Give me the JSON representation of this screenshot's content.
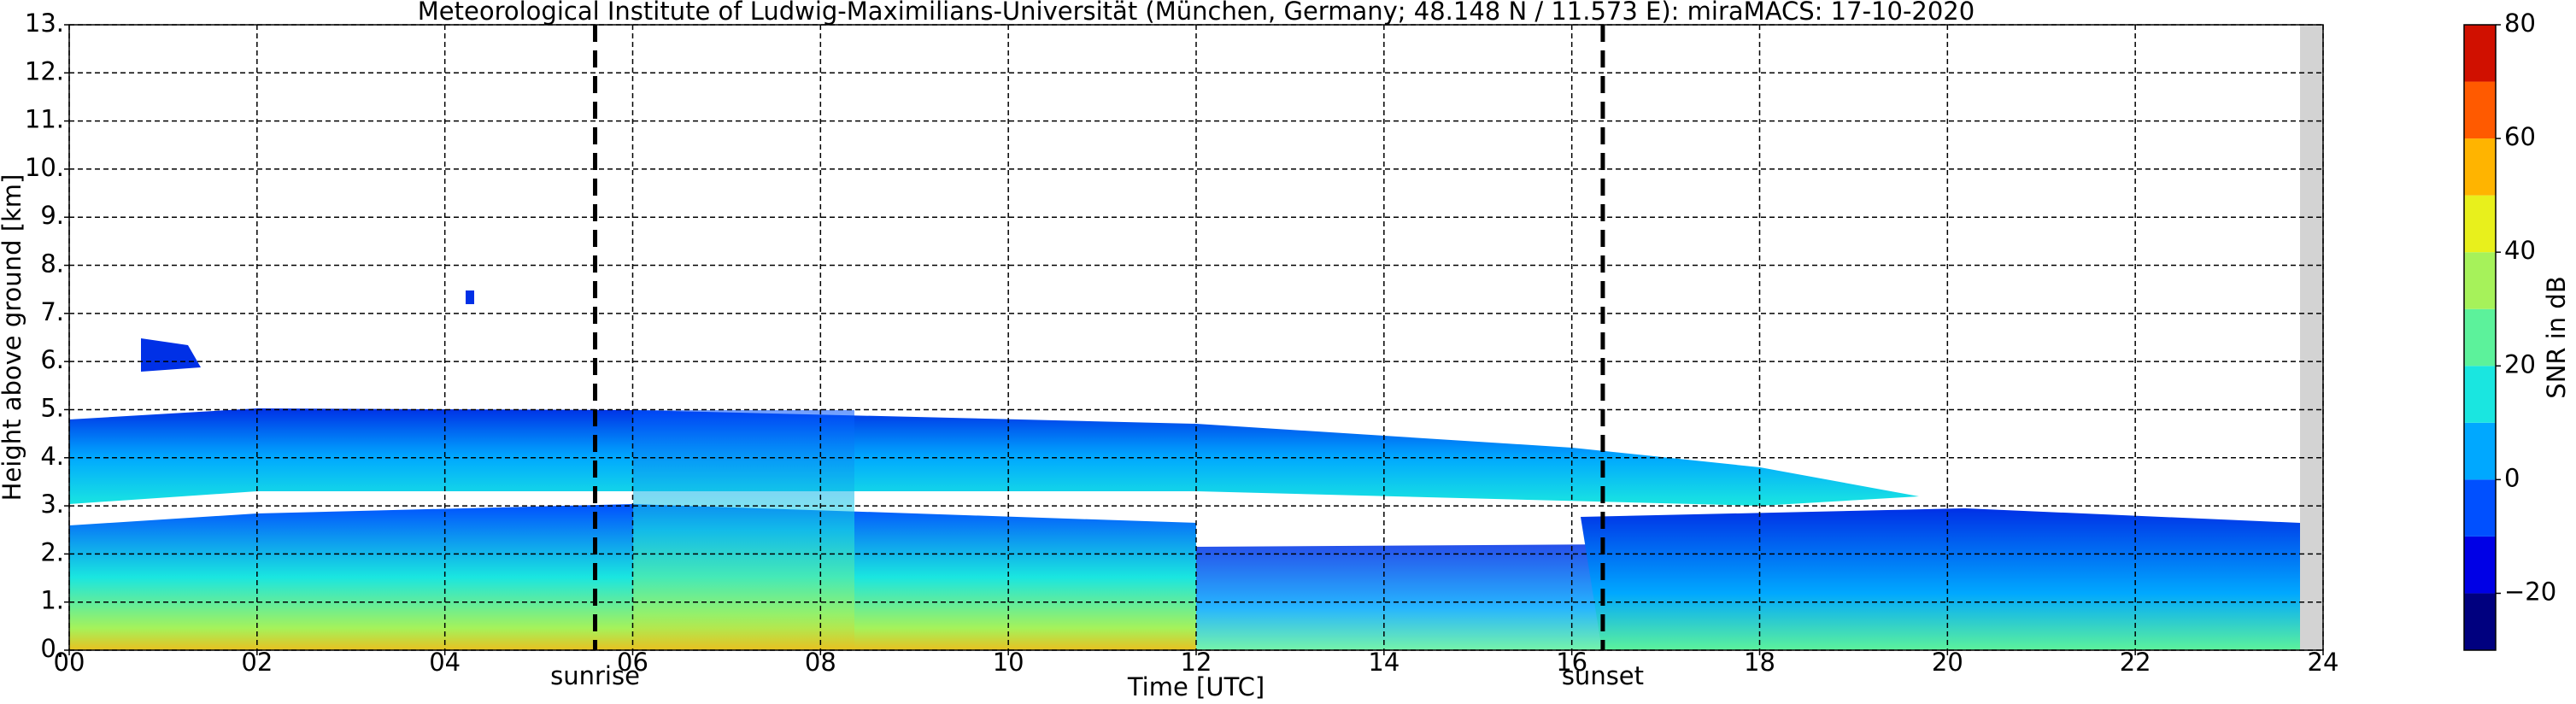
{
  "chart_data": {
    "type": "heatmap",
    "title": "Meteorological Institute of Ludwig-Maximilians-Universität (München, Germany; 48.148 N / 11.573 E):    miraMACS: 17-10-2020",
    "xlabel": "Time [UTC]",
    "ylabel": "Height above ground [km]",
    "xlim": [
      0,
      24
    ],
    "xticks": [
      {
        "value": 0,
        "label": "00"
      },
      {
        "value": 2,
        "label": "02"
      },
      {
        "value": 4,
        "label": "04"
      },
      {
        "value": 6,
        "label": "06"
      },
      {
        "value": 8,
        "label": "08"
      },
      {
        "value": 10,
        "label": "10"
      },
      {
        "value": 12,
        "label": "12"
      },
      14,
      16,
      18,
      20,
      22,
      24
    ],
    "ylim": [
      0,
      13
    ],
    "yticks": [
      {
        "value": 0,
        "label": "0."
      },
      {
        "value": 1,
        "label": "1."
      },
      {
        "value": 2,
        "label": "2."
      },
      {
        "value": 3,
        "label": "3."
      },
      {
        "value": 4,
        "label": "4."
      },
      {
        "value": 5,
        "label": "5."
      },
      {
        "value": 6,
        "label": "6."
      },
      {
        "value": 7,
        "label": "7."
      },
      {
        "value": 8,
        "label": "8."
      },
      {
        "value": 9,
        "label": "9."
      },
      {
        "value": 10,
        "label": "10."
      },
      {
        "value": 11,
        "label": "11."
      },
      {
        "value": 12,
        "label": "12."
      },
      {
        "value": 13,
        "label": "13."
      }
    ],
    "grid": true,
    "annotations": [
      {
        "label": "sunrise",
        "x": 5.6
      },
      {
        "label": "sunset",
        "x": 16.33
      }
    ],
    "colorbar": {
      "label": "SNR in dB",
      "lim": [
        -30,
        80
      ],
      "levels": [
        -30,
        -20,
        -10,
        0,
        10,
        20,
        30,
        40,
        50,
        60,
        70,
        80
      ],
      "colors": [
        "#00007f",
        "#0000e6",
        "#0050ff",
        "#00a8ff",
        "#1ae6e0",
        "#5cf29b",
        "#a6f25a",
        "#e8f01c",
        "#ffb400",
        "#ff5a00",
        "#d01000"
      ],
      "ticks": [
        {
          "value": -20,
          "label": "−20"
        },
        0,
        20,
        40,
        60,
        80
      ]
    }
  }
}
